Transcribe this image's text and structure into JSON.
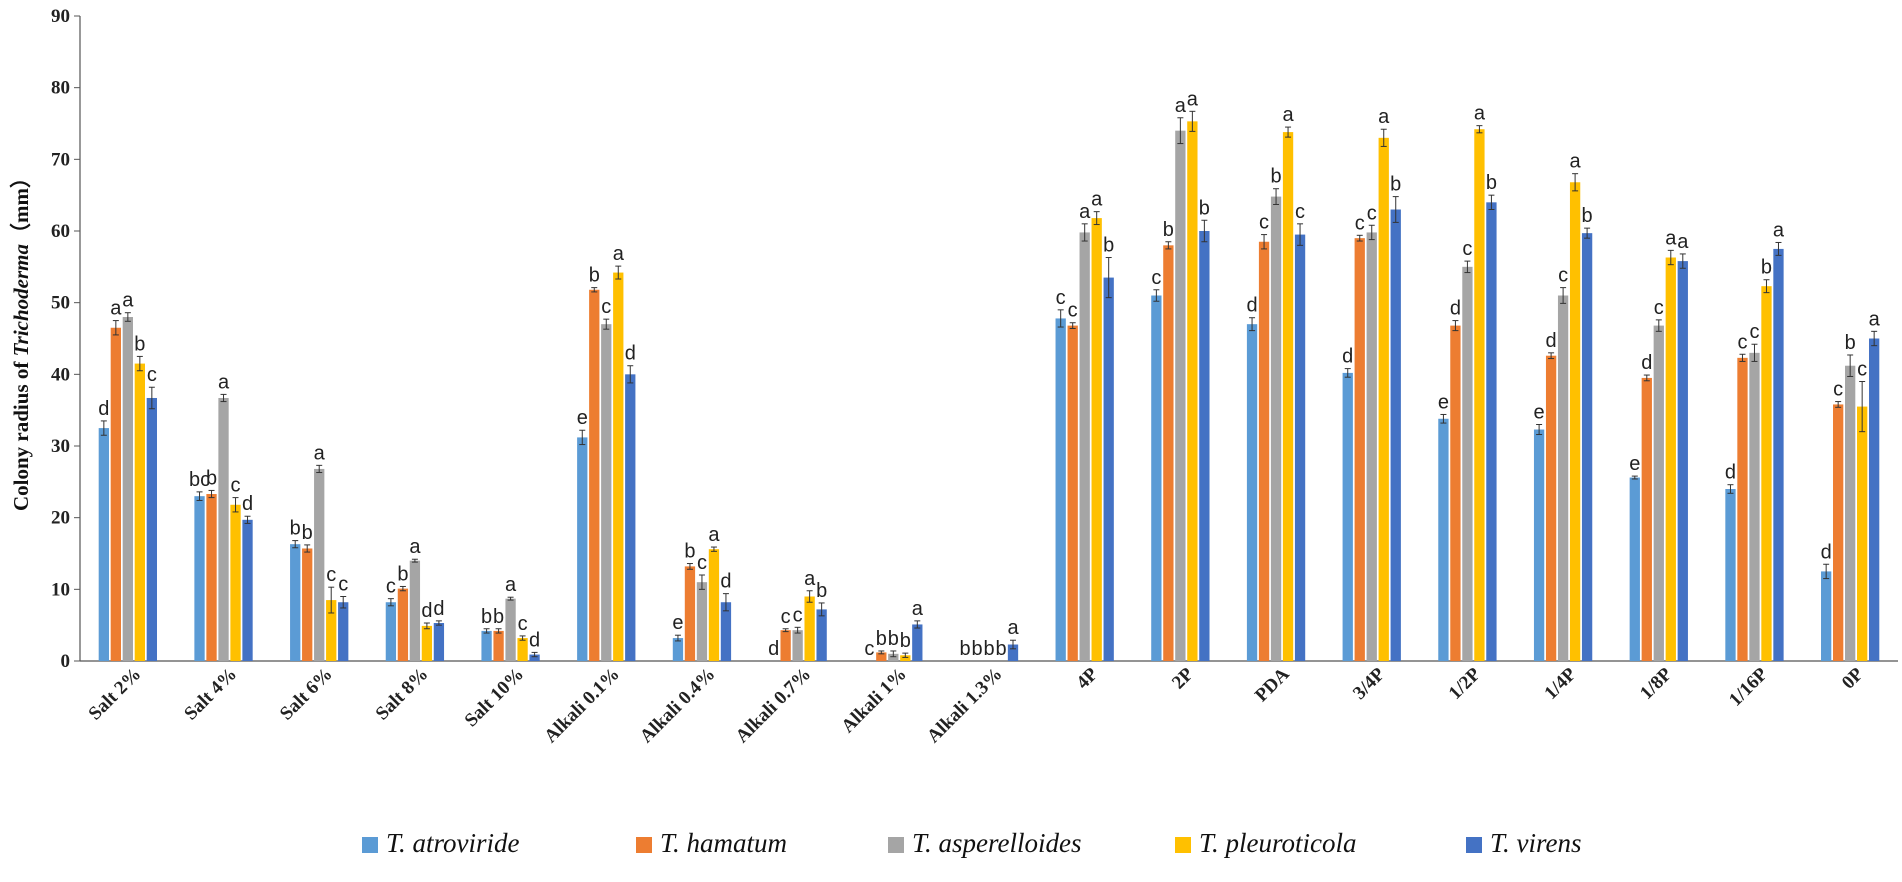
{
  "chart_data": {
    "type": "bar",
    "ylabel_prefix": "Colony radius of ",
    "ylabel_italic": "Trichoderma",
    "ylabel_suffix": "（mm）",
    "ylim": [
      0,
      90
    ],
    "yticks": [
      "0",
      "10",
      "20",
      "30",
      "40",
      "50",
      "60",
      "70",
      "80",
      "90"
    ],
    "ytick_values": [
      0,
      10,
      20,
      30,
      40,
      50,
      60,
      70,
      80,
      90
    ],
    "legend_position": "bottom",
    "categories": [
      "Salt 2%",
      "Salt 4%",
      "Salt 6%",
      "Salt 8%",
      "Salt 10%",
      "Alkali 0.1%",
      "Alkali 0.4%",
      "Alkali 0.7%",
      "Alkali 1%",
      "Alkali 1.3%",
      "4P",
      "2P",
      "PDA",
      "3/4P",
      "1/2P",
      "1/4P",
      "1/8P",
      "1/16P",
      "0P"
    ],
    "series": [
      {
        "name": "T. atroviride",
        "color": "#5b9bd5",
        "values": [
          32.5,
          23,
          16.3,
          8.2,
          4.2,
          31.2,
          3.2,
          0,
          0,
          0,
          47.8,
          51,
          47,
          40.2,
          33.8,
          32.3,
          25.6,
          24,
          12.5
        ],
        "errors": [
          1.0,
          0.6,
          0.5,
          0.5,
          0.3,
          1.0,
          0.4,
          0,
          0,
          0,
          1.2,
          0.8,
          0.9,
          0.6,
          0.6,
          0.7,
          0.2,
          0.6,
          1.0
        ],
        "labels": [
          "d",
          "bc",
          "b",
          "c",
          "b",
          "e",
          "e",
          "d",
          "c",
          "b",
          "c",
          "c",
          "d",
          "d",
          "e",
          "e",
          "e",
          "d",
          "d"
        ]
      },
      {
        "name": "T. hamatum",
        "color": "#ed7d31",
        "values": [
          46.5,
          23.3,
          15.7,
          10.1,
          4.2,
          51.8,
          13.2,
          4.3,
          1.2,
          0,
          46.8,
          58,
          58.5,
          59,
          46.8,
          42.6,
          39.5,
          42.3,
          35.8
        ],
        "errors": [
          1.0,
          0.5,
          0.5,
          0.3,
          0.3,
          0.3,
          0.4,
          0.2,
          0.2,
          0,
          0.4,
          0.5,
          1.0,
          0.4,
          0.7,
          0.4,
          0.4,
          0.5,
          0.4
        ],
        "labels": [
          "a",
          "b",
          "b",
          "b",
          "b",
          "b",
          "b",
          "c",
          "b",
          "b",
          "c",
          "b",
          "c",
          "c",
          "d",
          "d",
          "d",
          "c",
          "c"
        ]
      },
      {
        "name": "T. asperelloides",
        "color": "#a5a5a5",
        "values": [
          48,
          36.7,
          26.8,
          14,
          8.7,
          47,
          11,
          4.3,
          1,
          0,
          59.8,
          74,
          64.8,
          59.8,
          55,
          51,
          46.8,
          43,
          41.2
        ],
        "errors": [
          0.6,
          0.5,
          0.5,
          0.2,
          0.2,
          0.7,
          1.0,
          0.4,
          0.4,
          0,
          1.2,
          1.8,
          1.1,
          1.0,
          0.8,
          1.1,
          0.8,
          1.2,
          1.5
        ],
        "labels": [
          "a",
          "a",
          "a",
          "a",
          "a",
          "c",
          "c",
          "c",
          "b",
          "b",
          "a",
          "a",
          "b",
          "c",
          "c",
          "c",
          "c",
          "c",
          "b"
        ]
      },
      {
        "name": "T. pleuroticola",
        "color": "#ffc000",
        "values": [
          41.5,
          21.8,
          8.5,
          4.9,
          3.2,
          54.2,
          15.6,
          9,
          0.8,
          0,
          61.8,
          75.3,
          73.8,
          73,
          74.2,
          66.8,
          56.3,
          52.3,
          35.5
        ],
        "errors": [
          1.0,
          1.0,
          1.8,
          0.4,
          0.3,
          0.9,
          0.3,
          0.8,
          0.3,
          0,
          0.9,
          1.4,
          0.7,
          1.2,
          0.5,
          1.2,
          1.0,
          0.9,
          3.5
        ],
        "labels": [
          "b",
          "c",
          "c",
          "d",
          "c",
          "a",
          "a",
          "a",
          "b",
          "b",
          "a",
          "a",
          "a",
          "a",
          "a",
          "a",
          "a",
          "b",
          "c"
        ]
      },
      {
        "name": "T. virens",
        "color": "#4472c4",
        "values": [
          36.7,
          19.7,
          8.2,
          5.3,
          0.9,
          40,
          8.2,
          7.2,
          5.1,
          2.3,
          53.5,
          60,
          59.5,
          63,
          64,
          59.7,
          55.8,
          57.5,
          45
        ],
        "errors": [
          1.5,
          0.5,
          0.8,
          0.3,
          0.3,
          1.2,
          1.2,
          0.9,
          0.5,
          0.6,
          2.8,
          1.5,
          1.5,
          1.8,
          1.0,
          0.7,
          1.0,
          0.9,
          1.0
        ],
        "labels": [
          "c",
          "d",
          "c",
          "d",
          "d",
          "d",
          "d",
          "b",
          "a",
          "a",
          "b",
          "b",
          "c",
          "b",
          "b",
          "b",
          "a",
          "a",
          "a"
        ]
      }
    ]
  }
}
